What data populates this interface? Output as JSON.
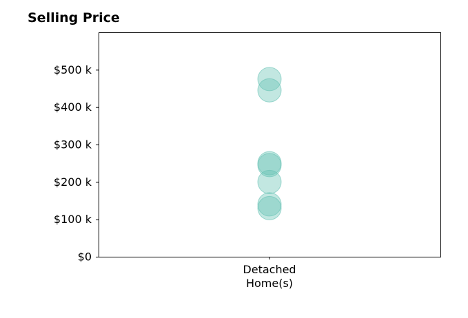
{
  "chart_data": {
    "type": "scatter",
    "title": "Selling Price",
    "xlabel": "",
    "ylabel": "",
    "categories": [
      "Detached Home(s)"
    ],
    "category_label_lines": [
      [
        "Detached",
        "Home(s)"
      ]
    ],
    "ylim": [
      0,
      600000
    ],
    "yticks": [
      0,
      100000,
      200000,
      300000,
      400000,
      500000
    ],
    "ytick_labels": [
      "$0",
      "$100 k",
      "$200 k",
      "$300 k",
      "$400 k",
      "$500 k"
    ],
    "grid": false,
    "legend": "none",
    "series": [
      {
        "category": "Detached Home(s)",
        "values": [
          475000,
          445000,
          250000,
          245000,
          200000,
          140000,
          130000
        ]
      }
    ],
    "marker_color": "#66c2b4",
    "marker_opacity": 0.4
  }
}
